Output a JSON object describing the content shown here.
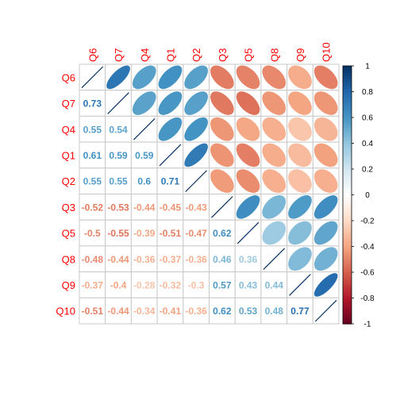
{
  "chart_data": {
    "type": "heatmap",
    "variables": [
      "Q6",
      "Q7",
      "Q4",
      "Q1",
      "Q2",
      "Q3",
      "Q5",
      "Q8",
      "Q9",
      "Q10"
    ],
    "matrix": [
      [
        1.0,
        0.73,
        0.55,
        0.61,
        0.55,
        -0.52,
        -0.5,
        -0.48,
        -0.37,
        -0.51
      ],
      [
        0.73,
        1.0,
        0.54,
        0.59,
        0.55,
        -0.53,
        -0.55,
        -0.44,
        -0.4,
        -0.44
      ],
      [
        0.55,
        0.54,
        1.0,
        0.59,
        0.6,
        -0.44,
        -0.39,
        -0.36,
        -0.28,
        -0.34
      ],
      [
        0.61,
        0.59,
        0.59,
        1.0,
        0.71,
        -0.45,
        -0.51,
        -0.37,
        -0.32,
        -0.41
      ],
      [
        0.55,
        0.55,
        0.6,
        0.71,
        1.0,
        -0.43,
        -0.47,
        -0.36,
        -0.3,
        -0.36
      ],
      [
        -0.52,
        -0.53,
        -0.44,
        -0.45,
        -0.43,
        1.0,
        0.62,
        0.46,
        0.57,
        0.62
      ],
      [
        -0.5,
        -0.55,
        -0.39,
        -0.51,
        -0.47,
        0.62,
        1.0,
        0.36,
        0.43,
        0.53
      ],
      [
        -0.48,
        -0.44,
        -0.36,
        -0.37,
        -0.36,
        0.46,
        0.36,
        1.0,
        0.44,
        0.48
      ],
      [
        -0.37,
        -0.4,
        -0.28,
        -0.32,
        -0.3,
        0.57,
        0.43,
        0.44,
        1.0,
        0.77
      ],
      [
        -0.51,
        -0.44,
        -0.34,
        -0.41,
        -0.36,
        0.62,
        0.53,
        0.48,
        0.77,
        1.0
      ]
    ],
    "lower_labels": [
      [
        "",
        "",
        "",
        "",
        "",
        "",
        "",
        "",
        "",
        ""
      ],
      [
        "0.73",
        "",
        "",
        "",
        "",
        "",
        "",
        "",
        "",
        ""
      ],
      [
        "0.55",
        "0.54",
        "",
        "",
        "",
        "",
        "",
        "",
        "",
        ""
      ],
      [
        "0.61",
        "0.59",
        "0.59",
        "",
        "",
        "",
        "",
        "",
        "",
        ""
      ],
      [
        "0.55",
        "0.55",
        "0.6",
        "0.71",
        "",
        "",
        "",
        "",
        "",
        ""
      ],
      [
        "-0.52",
        "-0.53",
        "-0.44",
        "-0.45",
        "-0.43",
        "",
        "",
        "",
        "",
        ""
      ],
      [
        "-0.5",
        "-0.55",
        "-0.39",
        "-0.51",
        "-0.47",
        "0.62",
        "",
        "",
        "",
        ""
      ],
      [
        "-0.48",
        "-0.44",
        "-0.36",
        "-0.37",
        "-0.36",
        "0.46",
        "0.36",
        "",
        "",
        ""
      ],
      [
        "-0.37",
        "-0.4",
        "-0.28",
        "-0.32",
        "-0.3",
        "0.57",
        "0.43",
        "0.44",
        "",
        ""
      ],
      [
        "-0.51",
        "-0.44",
        "-0.34",
        "-0.41",
        "-0.36",
        "0.62",
        "0.53",
        "0.48",
        "0.77",
        ""
      ]
    ],
    "upper_method": "ellipse",
    "lower_method": "number",
    "colorbar": {
      "range": [
        -1,
        1
      ],
      "ticks": [
        "1",
        "0.8",
        "0.6",
        "0.4",
        "0.2",
        "0",
        "-0.2",
        "-0.4",
        "-0.6",
        "-0.8",
        "-1"
      ]
    },
    "label_color": "#ff0000",
    "palette": [
      "#67001f",
      "#b2182b",
      "#d6604d",
      "#f4a582",
      "#fddbc7",
      "#ffffff",
      "#d1e5f0",
      "#92c5de",
      "#4393c3",
      "#2166ac",
      "#053061"
    ],
    "legend_position": "right",
    "grid": true
  }
}
